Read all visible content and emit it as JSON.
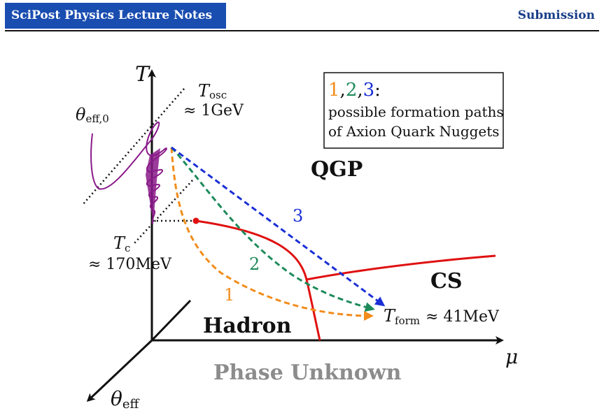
{
  "header": {
    "journal": "SciPost Physics Lecture Notes",
    "label": "Submission"
  },
  "figure": {
    "axes": {
      "temperature": "T",
      "chemical_potential": "μ",
      "theta_eff": "θ",
      "theta_eff_sub": "eff"
    },
    "theta_initial": {
      "main": "θ",
      "sub": "eff,0"
    },
    "t_osc": {
      "main": "T",
      "sub": "osc",
      "value": "≈ 1GeV"
    },
    "t_c": {
      "main": "T",
      "sub": "c",
      "value": "≈ 170MeV"
    },
    "t_form": {
      "main": "T",
      "sub": "form",
      "value": "≈ 41MeV"
    },
    "phases": {
      "qgp": "QGP",
      "cs": "CS",
      "hadron": "Hadron",
      "unknown": "Phase Unknown"
    },
    "paths": [
      {
        "label": "1",
        "color": "#f28c1a"
      },
      {
        "label": "2",
        "color": "#1e8a5a"
      },
      {
        "label": "3",
        "color": "#1a2fd6"
      }
    ],
    "legend": {
      "n1": "1",
      "n2": "2",
      "n3": "3",
      "comma": ",",
      "colon": ":",
      "line1": "possible formation paths",
      "line2": "of Axion Quark Nuggets"
    },
    "colors": {
      "phase_boundary": "#e01010",
      "oscillation": "#8a1a8a",
      "axis": "#111111",
      "unknown": "#8c8c8c"
    }
  }
}
